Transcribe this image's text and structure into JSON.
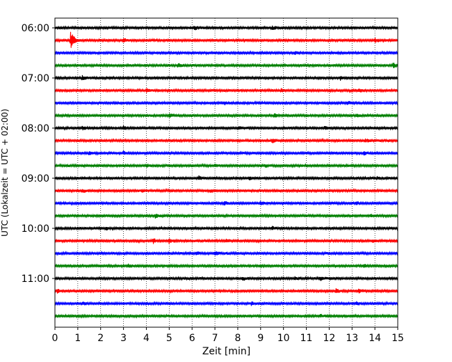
{
  "chart_data": {
    "type": "line",
    "title": "",
    "xlabel": "Zeit  [min]",
    "ylabel": "UTC (Lokalzeit = UTC + 02:00)",
    "xlim": [
      0,
      15
    ],
    "x_ticks": [
      "0",
      "1",
      "2",
      "3",
      "4",
      "5",
      "6",
      "7",
      "8",
      "9",
      "10",
      "11",
      "12",
      "13",
      "14",
      "15"
    ],
    "y_ticks": [
      "06:00",
      "07:00",
      "08:00",
      "09:00",
      "10:00",
      "11:00"
    ],
    "grid": "vertical dotted at each minute",
    "rows_per_hour": 4,
    "minutes_per_row": 15,
    "row_colors": [
      "#000000",
      "#ff0000",
      "#0000ff",
      "#008000"
    ],
    "rows": [
      {
        "start": "06:00",
        "color": "#000000",
        "events": [
          {
            "x": 6.1,
            "amp": 0.35
          },
          {
            "x": 9.5,
            "amp": 0.3
          }
        ]
      },
      {
        "start": "06:15",
        "color": "#ff0000",
        "events": [
          {
            "x": 0.7,
            "amp": 1.9
          },
          {
            "x": 3.0,
            "amp": 0.3
          },
          {
            "x": 14.0,
            "amp": 0.3
          }
        ]
      },
      {
        "start": "06:30",
        "color": "#0000ff",
        "events": [
          {
            "x": 10.5,
            "amp": 0.25
          }
        ]
      },
      {
        "start": "06:45",
        "color": "#008000",
        "events": [
          {
            "x": 5.4,
            "amp": 0.3
          },
          {
            "x": 14.8,
            "amp": 0.4
          }
        ]
      },
      {
        "start": "07:00",
        "color": "#000000",
        "events": [
          {
            "x": 1.2,
            "amp": 0.3
          },
          {
            "x": 12.5,
            "amp": 0.3
          }
        ]
      },
      {
        "start": "07:15",
        "color": "#ff0000",
        "events": [
          {
            "x": 4.0,
            "amp": 0.35
          },
          {
            "x": 9.9,
            "amp": 0.25
          },
          {
            "x": 13.3,
            "amp": 0.25
          }
        ]
      },
      {
        "start": "07:30",
        "color": "#0000ff",
        "events": [
          {
            "x": 7.4,
            "amp": 0.3
          },
          {
            "x": 12.8,
            "amp": 0.3
          }
        ]
      },
      {
        "start": "07:45",
        "color": "#008000",
        "events": [
          {
            "x": 5.0,
            "amp": 0.3
          },
          {
            "x": 9.6,
            "amp": 0.3
          },
          {
            "x": 13.2,
            "amp": 0.3
          }
        ]
      },
      {
        "start": "08:00",
        "color": "#000000",
        "events": [
          {
            "x": 1.2,
            "amp": 0.3
          },
          {
            "x": 3.0,
            "amp": 0.35
          },
          {
            "x": 8.0,
            "amp": 0.3
          },
          {
            "x": 11.8,
            "amp": 0.25
          }
        ]
      },
      {
        "start": "08:15",
        "color": "#ff0000",
        "events": [
          {
            "x": 9.5,
            "amp": 0.4
          },
          {
            "x": 13.6,
            "amp": 0.3
          }
        ]
      },
      {
        "start": "08:30",
        "color": "#0000ff",
        "events": [
          {
            "x": 1.5,
            "amp": 0.3
          },
          {
            "x": 3.0,
            "amp": 0.3
          },
          {
            "x": 13.5,
            "amp": 0.25
          }
        ]
      },
      {
        "start": "08:45",
        "color": "#008000",
        "events": [
          {
            "x": 4.0,
            "amp": 0.3
          },
          {
            "x": 7.0,
            "amp": 0.25
          },
          {
            "x": 9.2,
            "amp": 0.25
          }
        ]
      },
      {
        "start": "09:00",
        "color": "#000000",
        "events": [
          {
            "x": 6.3,
            "amp": 0.35
          },
          {
            "x": 8.5,
            "amp": 0.3
          },
          {
            "x": 14.1,
            "amp": 0.25
          }
        ]
      },
      {
        "start": "09:15",
        "color": "#ff0000",
        "events": [
          {
            "x": 1.2,
            "amp": 0.3
          },
          {
            "x": 3.8,
            "amp": 0.3
          },
          {
            "x": 6.8,
            "amp": 0.3
          }
        ]
      },
      {
        "start": "09:30",
        "color": "#0000ff",
        "events": [
          {
            "x": 7.4,
            "amp": 0.3
          },
          {
            "x": 9.0,
            "amp": 0.35
          },
          {
            "x": 13.2,
            "amp": 0.25
          }
        ]
      },
      {
        "start": "09:45",
        "color": "#008000",
        "events": [
          {
            "x": 4.4,
            "amp": 0.35
          },
          {
            "x": 13.8,
            "amp": 0.25
          }
        ]
      },
      {
        "start": "10:00",
        "color": "#000000",
        "events": [
          {
            "x": 2.2,
            "amp": 0.25
          },
          {
            "x": 9.5,
            "amp": 0.3
          }
        ]
      },
      {
        "start": "10:15",
        "color": "#ff0000",
        "events": [
          {
            "x": 4.3,
            "amp": 0.35
          },
          {
            "x": 5.0,
            "amp": 0.4
          },
          {
            "x": 7.5,
            "amp": 0.25
          },
          {
            "x": 13.9,
            "amp": 0.3
          }
        ]
      },
      {
        "start": "10:30",
        "color": "#0000ff",
        "events": [
          {
            "x": 6.2,
            "amp": 0.3
          },
          {
            "x": 7.0,
            "amp": 0.35
          }
        ]
      },
      {
        "start": "10:45",
        "color": "#008000",
        "events": [
          {
            "x": 3.2,
            "amp": 0.3
          },
          {
            "x": 9.0,
            "amp": 0.25
          },
          {
            "x": 13.5,
            "amp": 0.25
          }
        ]
      },
      {
        "start": "11:00",
        "color": "#000000",
        "events": [
          {
            "x": 8.2,
            "amp": 0.3
          },
          {
            "x": 10.5,
            "amp": 0.3
          },
          {
            "x": 11.6,
            "amp": 0.35
          }
        ]
      },
      {
        "start": "11:15",
        "color": "#ff0000",
        "events": [
          {
            "x": 0.1,
            "amp": 0.3
          },
          {
            "x": 12.3,
            "amp": 0.3
          },
          {
            "x": 13.3,
            "amp": 0.3
          }
        ]
      },
      {
        "start": "11:30",
        "color": "#0000ff",
        "events": [
          {
            "x": 1.2,
            "amp": 0.3
          },
          {
            "x": 8.6,
            "amp": 0.25
          },
          {
            "x": 13.2,
            "amp": 0.25
          }
        ]
      },
      {
        "start": "11:45",
        "color": "#008000",
        "events": [
          {
            "x": 11.6,
            "amp": 0.25
          }
        ]
      }
    ]
  }
}
